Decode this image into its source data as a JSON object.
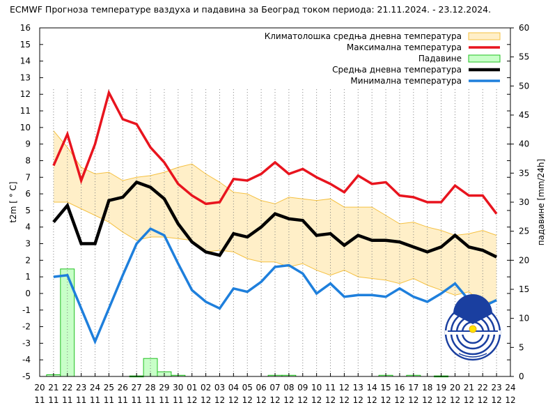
{
  "chart_data": {
    "type": "line",
    "title": "ECMWF Прогноза температуре ваздуха и падавина за Београд током периода: 21.11.2024. - 23.12.2024.",
    "ylabel": "t2m [ ° C]",
    "y2label": "падавине [mm/24h]",
    "ylim": [
      -5,
      16
    ],
    "y2lim": [
      0,
      60
    ],
    "yticks": [
      "-5",
      "-4",
      "-3",
      "-2",
      "-1",
      "0",
      "1",
      "2",
      "3",
      "4",
      "5",
      "6",
      "7",
      "8",
      "9",
      "10",
      "11",
      "12",
      "13",
      "14",
      "15",
      "16"
    ],
    "y2ticks": [
      "0",
      "5",
      "10",
      "15",
      "20",
      "25",
      "30",
      "35",
      "40",
      "45",
      "50",
      "55",
      "60"
    ],
    "xticks": [
      {
        "day": "20",
        "month": "11"
      },
      {
        "day": "21",
        "month": "11"
      },
      {
        "day": "22",
        "month": "11"
      },
      {
        "day": "23",
        "month": "11"
      },
      {
        "day": "24",
        "month": "11"
      },
      {
        "day": "25",
        "month": "11"
      },
      {
        "day": "26",
        "month": "11"
      },
      {
        "day": "27",
        "month": "11"
      },
      {
        "day": "28",
        "month": "11"
      },
      {
        "day": "29",
        "month": "11"
      },
      {
        "day": "30",
        "month": "11"
      },
      {
        "day": "01",
        "month": "12"
      },
      {
        "day": "02",
        "month": "12"
      },
      {
        "day": "03",
        "month": "12"
      },
      {
        "day": "04",
        "month": "12"
      },
      {
        "day": "05",
        "month": "12"
      },
      {
        "day": "06",
        "month": "12"
      },
      {
        "day": "07",
        "month": "12"
      },
      {
        "day": "08",
        "month": "12"
      },
      {
        "day": "09",
        "month": "12"
      },
      {
        "day": "10",
        "month": "12"
      },
      {
        "day": "11",
        "month": "12"
      },
      {
        "day": "12",
        "month": "12"
      },
      {
        "day": "13",
        "month": "12"
      },
      {
        "day": "14",
        "month": "12"
      },
      {
        "day": "15",
        "month": "12"
      },
      {
        "day": "16",
        "month": "12"
      },
      {
        "day": "17",
        "month": "12"
      },
      {
        "day": "18",
        "month": "12"
      },
      {
        "day": "19",
        "month": "12"
      },
      {
        "day": "20",
        "month": "12"
      },
      {
        "day": "21",
        "month": "12"
      },
      {
        "day": "22",
        "month": "12"
      },
      {
        "day": "23",
        "month": "12"
      },
      {
        "day": "24",
        "month": "12"
      }
    ],
    "legend": {
      "position": "top-right",
      "entries": [
        {
          "key": "clim",
          "label": "Климатолошка средња дневна температура"
        },
        {
          "key": "max",
          "label": "Максимална температура"
        },
        {
          "key": "precip",
          "label": "Падавине"
        },
        {
          "key": "mean",
          "label": "Средња дневна температура"
        },
        {
          "key": "min",
          "label": "Минимална температура"
        }
      ]
    },
    "colors": {
      "clim_fill": "#ffefc8",
      "clim_edge": "#f5c040",
      "max": "#e8141e",
      "mean": "#000000",
      "min": "#1e7fdc",
      "precip_fill": "#c8ffc8",
      "precip_edge": "#20c020",
      "grid": "#7a7a7a"
    },
    "climatology": {
      "x": [
        21,
        22,
        23,
        24,
        25,
        26,
        27,
        28,
        29,
        30,
        31,
        32,
        33,
        34,
        35,
        36,
        37,
        38,
        39,
        40,
        41,
        42,
        43,
        44,
        45,
        46,
        47,
        48,
        49,
        50,
        51,
        52,
        53
      ],
      "upper": [
        9.8,
        8.8,
        7.6,
        7.2,
        7.3,
        6.8,
        7.0,
        7.1,
        7.3,
        7.6,
        7.8,
        7.2,
        6.7,
        6.1,
        6.0,
        5.6,
        5.4,
        5.8,
        5.7,
        5.6,
        5.7,
        5.2,
        5.2,
        5.2,
        4.7,
        4.2,
        4.3,
        4.0,
        3.8,
        3.5,
        3.6,
        3.8,
        3.5
      ],
      "lower": [
        5.5,
        5.5,
        5.1,
        4.7,
        4.3,
        3.7,
        3.2,
        3.4,
        3.4,
        3.3,
        3.2,
        2.5,
        2.6,
        2.5,
        2.1,
        1.9,
        1.9,
        1.6,
        1.8,
        1.4,
        1.1,
        1.4,
        1.0,
        0.9,
        0.8,
        0.6,
        0.9,
        0.5,
        0.2,
        -0.1,
        0.1,
        -0.6,
        -0.4
      ]
    },
    "series": [
      {
        "key": "max",
        "name": "Максимална температура",
        "x": [
          21,
          22,
          23,
          24,
          25,
          26,
          27,
          28,
          29,
          30,
          31,
          32,
          33,
          34,
          35,
          36,
          37,
          38,
          39,
          40,
          41,
          42,
          43,
          44,
          45,
          46,
          47,
          48,
          49,
          50,
          51,
          52,
          53
        ],
        "values": [
          7.7,
          9.6,
          6.8,
          9.0,
          12.1,
          10.5,
          10.2,
          8.8,
          7.9,
          6.6,
          5.9,
          5.4,
          5.5,
          6.9,
          6.8,
          7.2,
          7.9,
          7.2,
          7.5,
          7.0,
          6.6,
          6.1,
          7.1,
          6.6,
          6.7,
          5.9,
          5.8,
          5.5,
          5.5,
          6.5,
          5.9,
          5.9,
          4.8
        ]
      },
      {
        "key": "mean",
        "name": "Средња дневна температура",
        "x": [
          21,
          22,
          23,
          24,
          25,
          26,
          27,
          28,
          29,
          30,
          31,
          32,
          33,
          34,
          35,
          36,
          37,
          38,
          39,
          40,
          41,
          42,
          43,
          44,
          45,
          46,
          47,
          48,
          49,
          50,
          51,
          52,
          53
        ],
        "values": [
          4.3,
          5.3,
          3.0,
          3.0,
          5.6,
          5.8,
          6.7,
          6.4,
          5.7,
          4.2,
          3.1,
          2.5,
          2.3,
          3.6,
          3.4,
          4.0,
          4.8,
          4.5,
          4.4,
          3.5,
          3.6,
          2.9,
          3.5,
          3.2,
          3.2,
          3.1,
          2.8,
          2.5,
          2.8,
          3.5,
          2.8,
          2.6,
          2.2
        ]
      },
      {
        "key": "min",
        "name": "Минимална температура",
        "x": [
          21,
          22,
          23,
          24,
          25,
          26,
          27,
          28,
          29,
          30,
          31,
          32,
          33,
          34,
          35,
          36,
          37,
          38,
          39,
          40,
          41,
          42,
          43,
          44,
          45,
          46,
          47,
          48,
          49,
          50,
          51,
          52,
          53
        ],
        "values": [
          1.0,
          1.1,
          -0.9,
          -2.9,
          -0.9,
          1.1,
          3.0,
          3.9,
          3.5,
          1.8,
          0.2,
          -0.5,
          -0.9,
          0.3,
          0.1,
          0.7,
          1.6,
          1.7,
          1.2,
          0.0,
          0.6,
          -0.2,
          -0.1,
          -0.1,
          -0.2,
          0.3,
          -0.2,
          -0.5,
          0.0,
          0.6,
          -0.4,
          -0.8,
          -0.4
        ]
      }
    ],
    "precipitation": {
      "x": [
        21,
        22,
        23,
        24,
        25,
        26,
        27,
        28,
        29,
        30,
        31,
        32,
        33,
        34,
        35,
        36,
        37,
        38,
        39,
        40,
        41,
        42,
        43,
        44,
        45,
        46,
        47,
        48,
        49,
        50,
        51,
        52,
        53
      ],
      "values": [
        0.3,
        18.5,
        0,
        0,
        0,
        0,
        0.1,
        3.1,
        0.8,
        0.2,
        0,
        0,
        0,
        0,
        0,
        0,
        0.2,
        0.2,
        0,
        0,
        0,
        0,
        0,
        0,
        0.2,
        0,
        0.2,
        0,
        0.1,
        0,
        0,
        0,
        0
      ]
    },
    "grid": "vertical dotted"
  }
}
